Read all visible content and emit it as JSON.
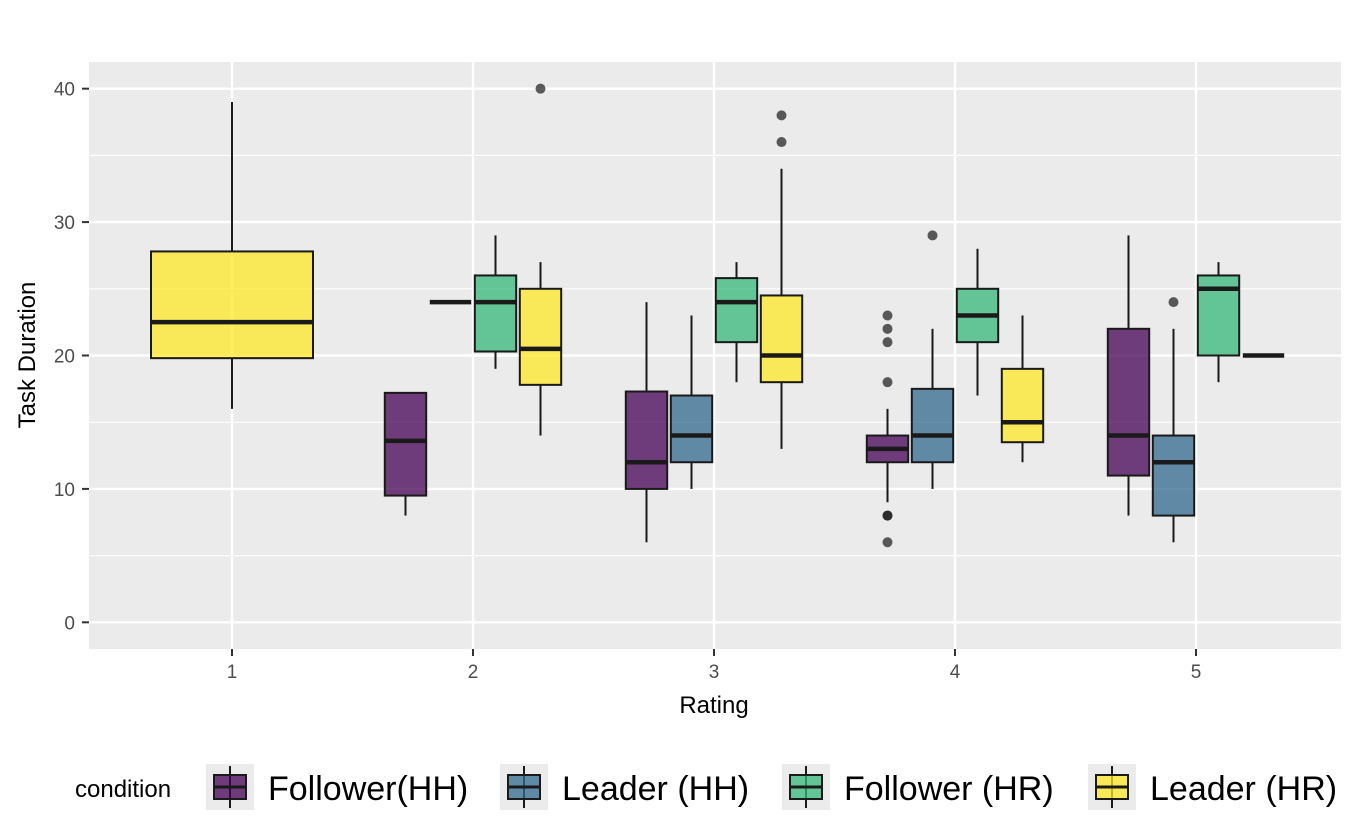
{
  "chart_data": {
    "type": "boxplot",
    "title": "",
    "xlabel": "Rating",
    "ylabel": "Task Duration",
    "ylim": [
      -2,
      42
    ],
    "yticks": [
      0,
      10,
      20,
      30,
      40
    ],
    "ytick_labels": [
      "0",
      "10",
      "20",
      "30",
      "40"
    ],
    "categories": [
      "1",
      "2",
      "3",
      "4",
      "5"
    ],
    "grid": true,
    "legend": {
      "title": "condition",
      "position": "bottom",
      "entries": [
        "Follower(HH)",
        "Leader (HH)",
        "Follower (HR)",
        "Leader (HR)"
      ]
    },
    "series": [
      {
        "name": "Follower(HH)",
        "color": "#440154",
        "boxes": [
          {
            "category": "2",
            "lower_whisker": 8,
            "q1": 9.5,
            "median": 13.6,
            "q3": 17.2,
            "upper_whisker": 17.2,
            "outliers": []
          },
          {
            "category": "3",
            "lower_whisker": 6,
            "q1": 10,
            "median": 12,
            "q3": 17.3,
            "upper_whisker": 24,
            "outliers": []
          },
          {
            "category": "4",
            "lower_whisker": 9,
            "q1": 12,
            "median": 13,
            "q3": 14,
            "upper_whisker": 16,
            "outliers": [
              23,
              22,
              21,
              18,
              8,
              8,
              6
            ]
          },
          {
            "category": "5",
            "lower_whisker": 8,
            "q1": 11,
            "median": 14,
            "q3": 22,
            "upper_whisker": 29,
            "outliers": []
          }
        ]
      },
      {
        "name": "Leader (HH)",
        "color": "#31688E",
        "boxes": [
          {
            "category": "2",
            "lower_whisker": 24,
            "q1": 24,
            "median": 24,
            "q3": 24,
            "upper_whisker": 24,
            "outliers": []
          },
          {
            "category": "3",
            "lower_whisker": 10,
            "q1": 12,
            "median": 14,
            "q3": 17,
            "upper_whisker": 23,
            "outliers": []
          },
          {
            "category": "4",
            "lower_whisker": 10,
            "q1": 12,
            "median": 14,
            "q3": 17.5,
            "upper_whisker": 22,
            "outliers": [
              29
            ]
          },
          {
            "category": "5",
            "lower_whisker": 6,
            "q1": 8,
            "median": 12,
            "q3": 14,
            "upper_whisker": 22,
            "outliers": [
              24
            ]
          }
        ]
      },
      {
        "name": "Follower (HR)",
        "color": "#35B779",
        "boxes": [
          {
            "category": "2",
            "lower_whisker": 19,
            "q1": 20.3,
            "median": 24,
            "q3": 26,
            "upper_whisker": 29,
            "outliers": []
          },
          {
            "category": "3",
            "lower_whisker": 18,
            "q1": 21,
            "median": 24,
            "q3": 25.8,
            "upper_whisker": 27,
            "outliers": []
          },
          {
            "category": "4",
            "lower_whisker": 17,
            "q1": 21,
            "median": 23,
            "q3": 25,
            "upper_whisker": 28,
            "outliers": []
          },
          {
            "category": "5",
            "lower_whisker": 18,
            "q1": 20,
            "median": 25,
            "q3": 26,
            "upper_whisker": 27,
            "outliers": []
          }
        ]
      },
      {
        "name": "Leader (HR)",
        "color": "#FDE725",
        "boxes": [
          {
            "category": "1",
            "lower_whisker": 16,
            "q1": 19.8,
            "median": 22.5,
            "q3": 27.8,
            "upper_whisker": 39,
            "outliers": []
          },
          {
            "category": "2",
            "lower_whisker": 14,
            "q1": 17.8,
            "median": 20.5,
            "q3": 25,
            "upper_whisker": 27,
            "outliers": [
              40
            ]
          },
          {
            "category": "3",
            "lower_whisker": 13,
            "q1": 18,
            "median": 20,
            "q3": 24.5,
            "upper_whisker": 34,
            "outliers": [
              36,
              38
            ]
          },
          {
            "category": "4",
            "lower_whisker": 12,
            "q1": 13.5,
            "median": 15,
            "q3": 19,
            "upper_whisker": 23,
            "outliers": []
          },
          {
            "category": "5",
            "lower_whisker": 20,
            "q1": 20,
            "median": 20,
            "q3": 20,
            "upper_whisker": 20,
            "outliers": []
          }
        ]
      }
    ]
  }
}
